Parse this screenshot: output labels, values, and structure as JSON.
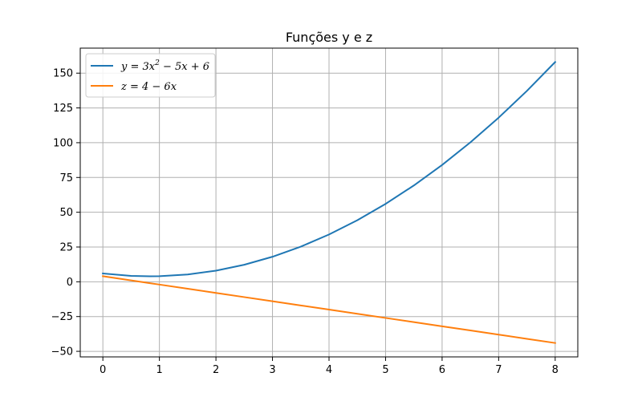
{
  "chart_data": {
    "type": "line",
    "title": "Funções y e z",
    "xlabel": "",
    "ylabel": "",
    "xlim": [
      -0.4,
      8.4
    ],
    "ylim": [
      -54,
      168
    ],
    "xticks": [
      0,
      1,
      2,
      3,
      4,
      5,
      6,
      7,
      8
    ],
    "yticks": [
      -50,
      -25,
      0,
      25,
      50,
      75,
      100,
      125,
      150
    ],
    "grid": true,
    "legend_position": "upper-left",
    "x": [
      0,
      0.5,
      0.8333,
      1,
      1.5,
      2,
      2.5,
      3,
      3.5,
      4,
      4.5,
      5,
      5.5,
      6,
      6.5,
      7,
      7.5,
      8
    ],
    "series": [
      {
        "name": "y = 3x² − 5x + 6",
        "color": "#1f77b4",
        "values": [
          6,
          4.25,
          3.9167,
          4,
          5.25,
          8,
          12.25,
          18,
          25.25,
          34,
          44.25,
          56,
          69.25,
          84,
          100.25,
          118,
          137.25,
          158
        ]
      },
      {
        "name": "z = 4 − 6x",
        "color": "#ff7f0e",
        "values": [
          4,
          1,
          -1,
          -2,
          -5,
          -8,
          -11,
          -14,
          -17,
          -20,
          -23,
          -26,
          -29,
          -32,
          -35,
          -38,
          -41,
          -44
        ]
      }
    ],
    "legend": [
      {
        "color": "#1f77b4",
        "label_main": "y = 3x",
        "label_sup": "2",
        "label_rest": " − 5x + 6"
      },
      {
        "color": "#ff7f0e",
        "label_main": "z = 4 − 6x",
        "label_sup": "",
        "label_rest": ""
      }
    ]
  }
}
